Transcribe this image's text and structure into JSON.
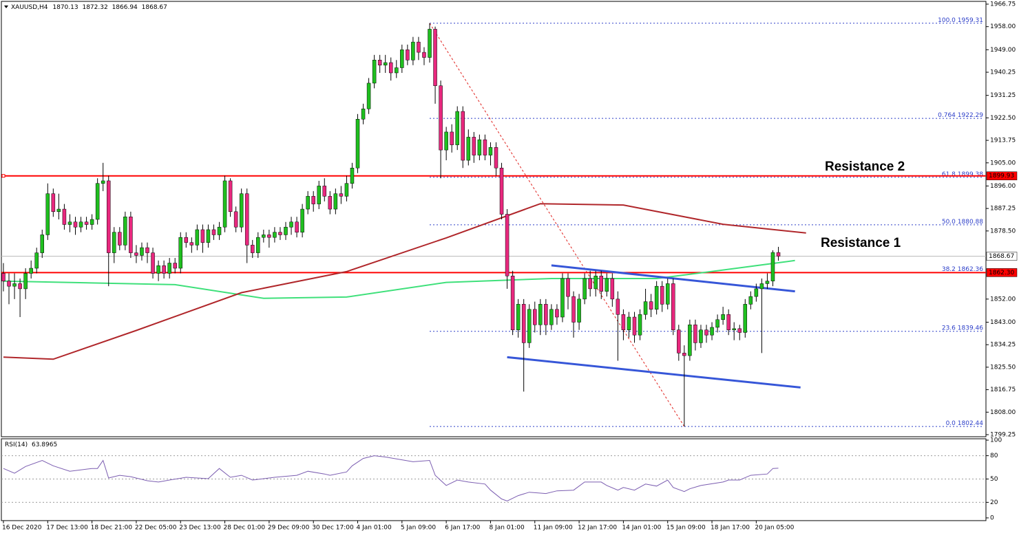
{
  "chart_data": {
    "type": "candlestick",
    "symbol": "XAUUSD,H4",
    "up_color": "#1fbf1f",
    "down_color": "#e8287e",
    "open": [
      1862,
      1859,
      1857,
      1858,
      1856,
      1862,
      1864,
      1870,
      1877,
      1893,
      1886,
      1887,
      1881,
      1882,
      1880,
      1882,
      1881,
      1883,
      1897,
      1898,
      1870,
      1878,
      1873,
      1884,
      1870,
      1869,
      1872,
      1870,
      1862,
      1865,
      1862,
      1866,
      1864,
      1876,
      1874,
      1873,
      1879,
      1874,
      1879,
      1877,
      1880,
      1898,
      1886,
      1880,
      1893,
      1873,
      1870,
      1876,
      1877,
      1876,
      1878,
      1877,
      1880,
      1882,
      1878,
      1887,
      1892,
      1889,
      1896,
      1892,
      1887,
      1893,
      1892,
      1897,
      1903,
      1922,
      1926,
      1936,
      1945,
      1943,
      1944,
      1940,
      1942,
      1949,
      1945,
      1952,
      1948,
      1946,
      1957,
      1935,
      1910,
      1917,
      1912,
      1925,
      1906,
      1915,
      1908,
      1914,
      1908,
      1911,
      1903,
      1885,
      1861,
      1840,
      1850,
      1835,
      1848,
      1842,
      1850,
      1842,
      1848,
      1845,
      1860,
      1853,
      1843,
      1852,
      1860,
      1856,
      1861,
      1855,
      1860,
      1852,
      1846,
      1840,
      1845,
      1838,
      1846,
      1851,
      1848,
      1857,
      1850,
      1858,
      1840,
      1831,
      1830,
      1842,
      1835,
      1840,
      1838,
      1841,
      1844,
      1846,
      1840,
      1840.5,
      1839,
      1850,
      1853,
      1856,
      1858,
      1859,
      1870.13
    ],
    "high": [
      1866,
      1862,
      1862,
      1860,
      1864,
      1867,
      1872,
      1879,
      1897,
      1895,
      1893,
      1889,
      1885,
      1884,
      1884,
      1884,
      1885,
      1899,
      1905,
      1900,
      1880,
      1880,
      1886,
      1886,
      1873,
      1874,
      1874,
      1872,
      1867,
      1867,
      1868,
      1868,
      1878,
      1878,
      1876,
      1881,
      1881,
      1881,
      1881,
      1882,
      1900,
      1899,
      1888,
      1895,
      1895,
      1875,
      1878,
      1879,
      1879,
      1880,
      1880,
      1882,
      1884,
      1884,
      1889,
      1894,
      1894,
      1898,
      1899,
      1894,
      1895,
      1896,
      1900,
      1905,
      1924,
      1928,
      1938,
      1947,
      1947,
      1947,
      1946,
      1945,
      1951,
      1951,
      1954,
      1954,
      1950,
      1959.31,
      1958,
      1937,
      1919,
      1920,
      1927,
      1927,
      1918,
      1917,
      1916,
      1916,
      1913,
      1913,
      1905,
      1887,
      1863,
      1852,
      1852,
      1850,
      1851,
      1852,
      1852,
      1850,
      1850,
      1862,
      1862,
      1855,
      1854,
      1862,
      1863,
      1863,
      1863,
      1862,
      1862,
      1855,
      1848,
      1847,
      1847,
      1848,
      1856,
      1854,
      1859,
      1859,
      1860,
      1860,
      1842,
      1834,
      1844,
      1844,
      1842,
      1842,
      1843,
      1846,
      1849,
      1848,
      1843,
      1842,
      1852,
      1855,
      1858,
      1860,
      1862,
      1871,
      1872.32
    ],
    "low": [
      1855,
      1850,
      1852,
      1845,
      1852,
      1860,
      1862,
      1868,
      1875,
      1884,
      1883,
      1879,
      1878,
      1877,
      1878,
      1879,
      1879,
      1881,
      1894,
      1857,
      1866,
      1871,
      1871,
      1868,
      1866,
      1867,
      1866,
      1860,
      1859,
      1860,
      1860,
      1862,
      1862,
      1872,
      1870,
      1871,
      1870,
      1872,
      1875,
      1875,
      1878,
      1884,
      1878,
      1878,
      1866,
      1868,
      1868,
      1874,
      1872,
      1874,
      1875,
      1875,
      1877,
      1876,
      1876,
      1885,
      1886,
      1887,
      1890,
      1885,
      1885,
      1889,
      1890,
      1895,
      1901,
      1920,
      1924,
      1934,
      1940,
      1940,
      1937,
      1938,
      1940,
      1943,
      1943,
      1945,
      1943,
      1944,
      1928,
      1899,
      1906,
      1909,
      1910,
      1903,
      1904,
      1905,
      1906,
      1906,
      1904,
      1900,
      1883,
      1856,
      1838,
      1837,
      1816,
      1833,
      1839,
      1838,
      1838,
      1840,
      1842,
      1843,
      1848,
      1837,
      1840,
      1850,
      1853,
      1853,
      1852,
      1853,
      1849,
      1828,
      1836,
      1837,
      1835,
      1836,
      1844,
      1845,
      1846,
      1847,
      1848,
      1838,
      1828,
      1802.44,
      1828,
      1832,
      1833,
      1835,
      1836,
      1839,
      1842,
      1838,
      1836,
      1836,
      1837,
      1848,
      1851,
      1831,
      1856,
      1857,
      1866.94
    ],
    "close": [
      1859,
      1857,
      1858,
      1856,
      1862,
      1864,
      1870,
      1877,
      1893,
      1886,
      1887,
      1881,
      1882,
      1880,
      1882,
      1881,
      1883,
      1897,
      1898,
      1870,
      1878,
      1873,
      1884,
      1870,
      1869,
      1872,
      1870,
      1862,
      1865,
      1862,
      1866,
      1864,
      1876,
      1874,
      1873,
      1879,
      1874,
      1879,
      1877,
      1880,
      1898,
      1886,
      1880,
      1893,
      1873,
      1870,
      1876,
      1877,
      1876,
      1878,
      1877,
      1880,
      1882,
      1878,
      1887,
      1892,
      1889,
      1896,
      1892,
      1887,
      1893,
      1892,
      1897,
      1903,
      1922,
      1926,
      1936,
      1945,
      1943,
      1944,
      1940,
      1942,
      1949,
      1945,
      1952,
      1948,
      1946,
      1957,
      1935,
      1910,
      1917,
      1912,
      1925,
      1906,
      1915,
      1908,
      1914,
      1908,
      1911,
      1903,
      1885,
      1861,
      1840,
      1850,
      1835,
      1848,
      1842,
      1850,
      1842,
      1848,
      1845,
      1860,
      1853,
      1843,
      1852,
      1860,
      1856,
      1861,
      1855,
      1860,
      1852,
      1846,
      1840,
      1845,
      1838,
      1846,
      1851,
      1848,
      1857,
      1850,
      1858,
      1840,
      1831,
      1830,
      1842,
      1835,
      1840,
      1838,
      1841,
      1844,
      1846,
      1840,
      1840.5,
      1839,
      1850,
      1853,
      1856,
      1858,
      1859,
      1870.13,
      1868.67
    ],
    "xlim": [
      -0.37,
      177.5
    ],
    "xticks": [
      {
        "value": 0,
        "label": "16 Dec 2020"
      },
      {
        "value": 8,
        "label": "17 Dec 13:00"
      },
      {
        "value": 16,
        "label": "18 Dec 21:00"
      },
      {
        "value": 24,
        "label": "22 Dec 05:00"
      },
      {
        "value": 32,
        "label": "23 Dec 13:00"
      },
      {
        "value": 40,
        "label": "28 Dec 01:00"
      },
      {
        "value": 48,
        "label": "29 Dec 09:00"
      },
      {
        "value": 56,
        "label": "30 Dec 17:00"
      },
      {
        "value": 64,
        "label": "4 Jan 01:00"
      },
      {
        "value": 72,
        "label": "5 Jan 09:00"
      },
      {
        "value": 80,
        "label": "6 Jan 17:00"
      },
      {
        "value": 88,
        "label": "8 Jan 01:00"
      },
      {
        "value": 96,
        "label": "11 Jan 09:00"
      },
      {
        "value": 104,
        "label": "12 Jan 17:00"
      },
      {
        "value": 112,
        "label": "14 Jan 01:00"
      },
      {
        "value": 120,
        "label": "15 Jan 09:00"
      },
      {
        "value": 128,
        "label": "18 Jan 17:00"
      },
      {
        "value": 136,
        "label": "20 Jan 05:00"
      }
    ],
    "ylim": [
      1798.45,
      1967.82
    ],
    "yticks": [
      1966.75,
      {
        "value": 1958,
        "label": "1958.00"
      },
      {
        "value": 1949,
        "label": "1949.00"
      },
      1940.25,
      1931.25,
      {
        "value": 1922.5,
        "label": "1922.50"
      },
      1913.75,
      {
        "value": 1905,
        "label": "1905.00"
      },
      {
        "value": 1896,
        "label": "1896.00"
      },
      1887.25,
      {
        "value": 1878.5,
        "label": "1878.50"
      },
      {
        "value": 1852,
        "label": "1852.00"
      },
      {
        "value": 1843,
        "label": "1843.00"
      },
      1834.25,
      {
        "value": 1825.5,
        "label": "1825.50"
      },
      1816.75,
      {
        "value": 1808,
        "label": "1808.00"
      },
      1799.25
    ],
    "moving_averages": [
      {
        "color": "#3ee07a",
        "x": [
          0,
          31,
          47,
          62,
          80,
          99,
          118,
          130,
          143
        ],
        "values": [
          1859,
          1857.6,
          1852.3,
          1852.8,
          1858.5,
          1860,
          1860,
          1863.3,
          1867
        ]
      },
      {
        "color": "#b0262a",
        "x": [
          0,
          9,
          24,
          43,
          62,
          80,
          97,
          112,
          130,
          145
        ],
        "values": [
          1829.4,
          1828.6,
          1839.8,
          1854.5,
          1862.7,
          1875.8,
          1889.1,
          1888.6,
          1881.1,
          1877.7
        ]
      }
    ],
    "levels": {
      "color": "#ff0000",
      "prices": [
        1899.93,
        {
          "value": 1862.3,
          "label": "1862.30"
        }
      ]
    },
    "annotations": [
      "Resistance 2",
      "Resistance 1"
    ],
    "annotation_color": "#e0201c",
    "fibonacci": {
      "color": "#2a3cc8",
      "x": [
        77,
        123
      ],
      "levels": [
        {
          "ratio": "100.0",
          "price": 1959.31
        },
        {
          "ratio": "0.764",
          "price": 1922.29
        },
        {
          "ratio": "61.8",
          "price": 1899.38
        },
        {
          "ratio": "50.0",
          "price": 1880.88
        },
        {
          "ratio": "38.2",
          "price": 1862.36
        },
        {
          "ratio": "23.6",
          "price": 1839.46
        },
        {
          "ratio": "0.0",
          "price": 1802.44
        }
      ]
    },
    "channel": {
      "color": "#3656d8",
      "upper": {
        "x": [
          99,
          143
        ],
        "y": [
          1865.1,
          1855
        ]
      },
      "lower": {
        "x": [
          91,
          144
        ],
        "y": [
          1829.4,
          1817.6
        ]
      }
    },
    "rsi": {
      "name": "RSI(14)",
      "color": "#7a5cb0",
      "ylim": [
        0,
        100
      ],
      "yticks": [
        100,
        80,
        50,
        20,
        0
      ],
      "x": [
        0,
        2,
        4,
        7,
        9,
        12,
        16,
        17,
        18,
        19,
        21,
        23,
        26,
        28,
        30,
        33,
        37,
        39,
        41,
        43,
        45,
        49,
        53,
        55,
        58,
        59,
        62,
        63,
        65,
        67,
        69,
        74,
        77,
        78,
        80,
        82,
        84,
        87,
        88,
        90,
        91,
        93,
        95,
        98,
        100,
        103,
        105,
        108,
        109,
        111,
        112,
        114,
        116,
        118,
        120,
        121,
        123,
        124,
        126,
        130,
        131,
        133,
        135,
        138,
        139,
        140
      ],
      "values": [
        63.5,
        57.4,
        66.1,
        73.9,
        67,
        60,
        63.5,
        63.5,
        73.9,
        51.3,
        54.8,
        53,
        47.8,
        46.1,
        48.7,
        52.2,
        50.4,
        63.5,
        52.2,
        54.8,
        48.7,
        52.2,
        54.8,
        60,
        56.5,
        54.8,
        59.1,
        67,
        76.5,
        80,
        78.3,
        72.2,
        73.9,
        54.8,
        41.7,
        48.7,
        46.1,
        43.5,
        35.7,
        24.3,
        21.7,
        28.7,
        33,
        31.3,
        34.8,
        35.7,
        46.1,
        46.1,
        41.7,
        35.7,
        39.1,
        35.7,
        43.5,
        40.9,
        48.7,
        39.1,
        33.9,
        37.4,
        41.7,
        46.1,
        48.7,
        48.7,
        54.8,
        56.5,
        63.5,
        63.8965
      ]
    }
  }
}
